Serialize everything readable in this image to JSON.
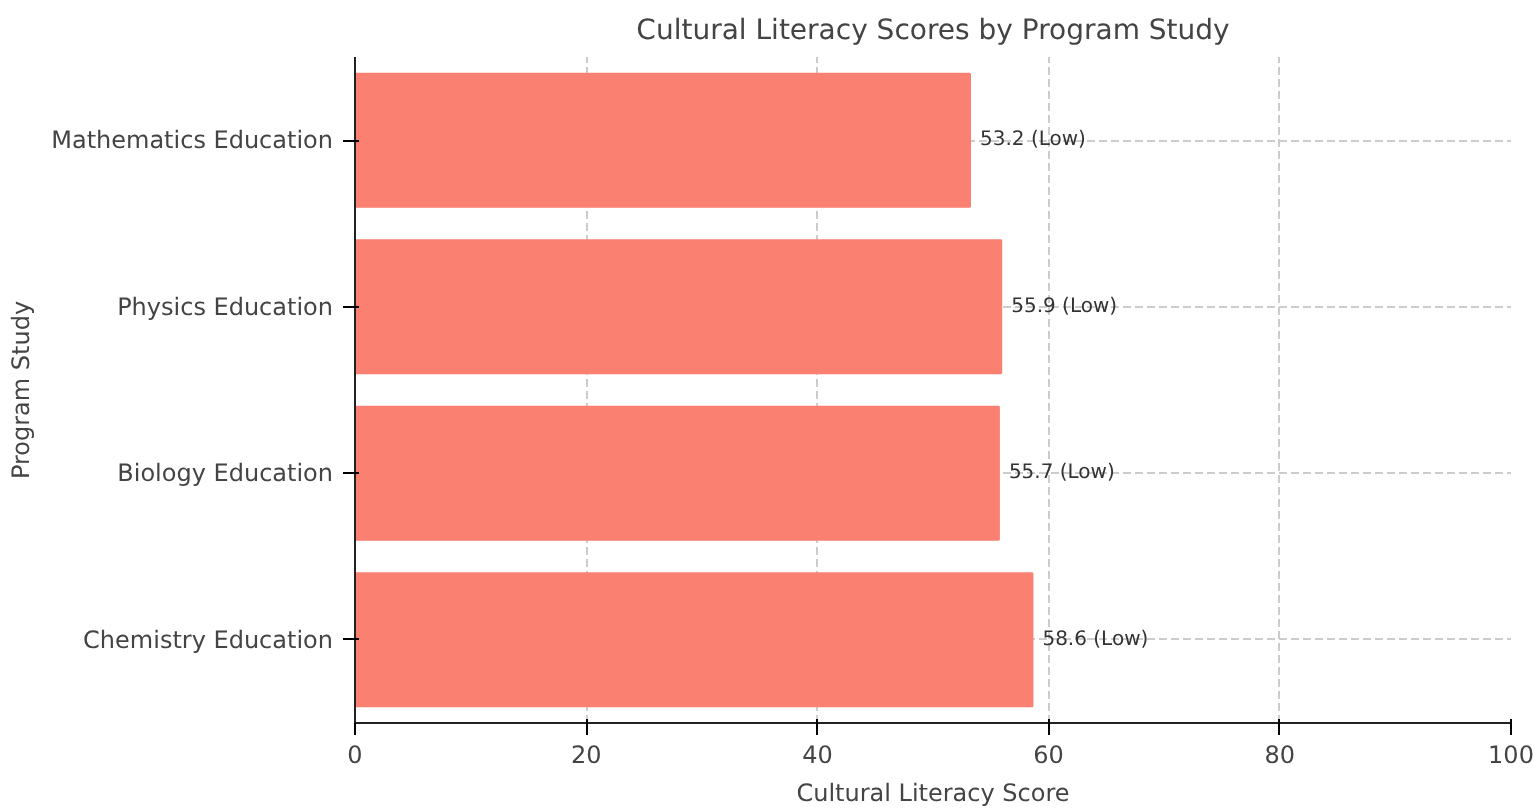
{
  "chart_data": {
    "type": "bar",
    "orientation": "horizontal",
    "title": "Cultural Literacy Scores by Program Study",
    "xlabel": "Cultural Literacy Score",
    "ylabel": "Program Study",
    "categories": [
      "Mathematics Education",
      "Physics Education",
      "Biology Education",
      "Chemistry Education"
    ],
    "values": [
      53.2,
      55.9,
      55.7,
      58.6
    ],
    "value_labels": [
      "53.2 (Low)",
      "55.9 (Low)",
      "55.7 (Low)",
      "58.6 (Low)"
    ],
    "color": "#fa8072",
    "xlim": [
      0,
      100
    ],
    "xticks": [
      0,
      20,
      40,
      60,
      80,
      100
    ],
    "grid": true
  }
}
